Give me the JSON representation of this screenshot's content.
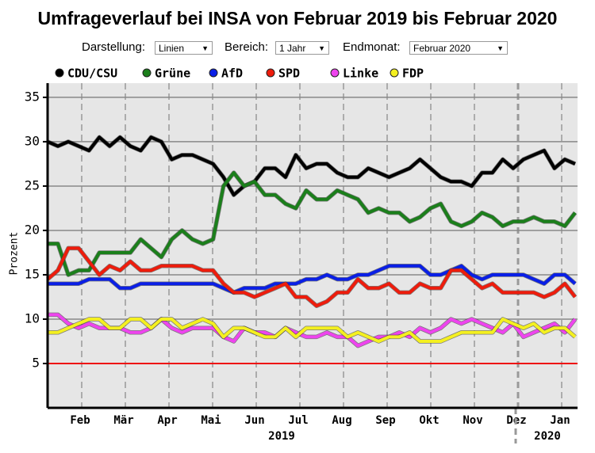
{
  "title": "Umfrageverlauf bei INSA von Februar 2019 bis Februar 2020",
  "controls": [
    {
      "label": "Darstellung:",
      "value": "Linien"
    },
    {
      "label": "Bereich:",
      "value": "1 Jahr"
    },
    {
      "label": "Endmonat:",
      "value": "Februar 2020"
    }
  ],
  "chart_data": {
    "type": "line",
    "ylabel": "Prozent",
    "ylim": [
      0,
      36.6
    ],
    "yticks": [
      5,
      10,
      15,
      20,
      25,
      30,
      35
    ],
    "grid": true,
    "threshold": 5,
    "threshold_color": "#ee1111",
    "months": [
      "Feb",
      "Mär",
      "Apr",
      "Mai",
      "Jun",
      "Jul",
      "Aug",
      "Sep",
      "Okt",
      "Nov",
      "Dez",
      "Jan"
    ],
    "years": [
      "2019",
      "2020"
    ],
    "series": [
      {
        "name": "CDU/CSU",
        "color": "#000000",
        "values": [
          30,
          29.5,
          30,
          29.5,
          29,
          30.5,
          29.5,
          30.5,
          29.5,
          29,
          30.5,
          30,
          28,
          28.5,
          28.5,
          28,
          27.5,
          26,
          24,
          25,
          25.5,
          27,
          27,
          26,
          28.5,
          27,
          27.5,
          27.5,
          26.5,
          26,
          26,
          27,
          26.5,
          26,
          26.5,
          27,
          28,
          27,
          26,
          25.5,
          25.5,
          25,
          26.5,
          26.5,
          28,
          27,
          28,
          28.5,
          29,
          27,
          28,
          27.5
        ]
      },
      {
        "name": "Grüne",
        "color": "#1b7f1b",
        "values": [
          18.5,
          18.5,
          15,
          15.5,
          15.5,
          17.5,
          17.5,
          17.5,
          17.5,
          19,
          18,
          17,
          19,
          20,
          19,
          18.5,
          19,
          25,
          26.5,
          25,
          25.5,
          24,
          24,
          23,
          22.5,
          24.5,
          23.5,
          23.5,
          24.5,
          24,
          23.5,
          22,
          22.5,
          22,
          22,
          21,
          21.5,
          22.5,
          23,
          21,
          20.5,
          21,
          22,
          21.5,
          20.5,
          21,
          21,
          21.5,
          21,
          21,
          20.5,
          22
        ]
      },
      {
        "name": "AfD",
        "color": "#0a1fe6",
        "values": [
          14,
          14,
          14,
          14,
          14.5,
          14.5,
          14.5,
          13.5,
          13.5,
          14,
          14,
          14,
          14,
          14,
          14,
          14,
          14,
          13.5,
          13,
          13.5,
          13.5,
          13.5,
          14,
          14,
          14,
          14.5,
          14.5,
          15,
          14.5,
          14.5,
          15,
          15,
          15.5,
          16,
          16,
          16,
          16,
          15,
          15,
          15.5,
          16,
          15,
          14.5,
          15,
          15,
          15,
          15,
          14.5,
          14,
          15,
          15,
          14
        ]
      },
      {
        "name": "SPD",
        "color": "#ee1c0c",
        "values": [
          14.5,
          15.5,
          18,
          18,
          16.5,
          15,
          16,
          15.5,
          16.5,
          15.5,
          15.5,
          16,
          16,
          16,
          16,
          15.5,
          15.5,
          14,
          13,
          13,
          12.5,
          13,
          13.5,
          14,
          12.5,
          12.5,
          11.5,
          12,
          13,
          13,
          14.5,
          13.5,
          13.5,
          14,
          13,
          13,
          14,
          13.5,
          13.5,
          15.5,
          15.5,
          14.5,
          13.5,
          14,
          13,
          13,
          13,
          13,
          12.5,
          13,
          14,
          12.5
        ]
      },
      {
        "name": "Linke",
        "color": "#ee44ee",
        "values": [
          10.5,
          10.5,
          9.5,
          9,
          9.5,
          9,
          9,
          9,
          8.5,
          8.5,
          9,
          10,
          9,
          8.5,
          9,
          9,
          9,
          8,
          7.5,
          9,
          8.5,
          8.5,
          8,
          9,
          8.5,
          8,
          8,
          8.5,
          8,
          8,
          7,
          7.5,
          8,
          8,
          8.5,
          8,
          9,
          8.5,
          9,
          10,
          9.5,
          10,
          9.5,
          9,
          8.5,
          9.5,
          8,
          8.5,
          9,
          9.5,
          8.5,
          10
        ]
      },
      {
        "name": "FDP",
        "color": "#f4f020",
        "values": [
          8.5,
          8.5,
          9,
          9.5,
          10,
          10,
          9,
          9,
          10,
          10,
          9,
          10,
          10,
          9,
          9.5,
          10,
          9.5,
          8,
          9,
          9,
          8.5,
          8,
          8,
          9,
          8,
          9,
          9,
          9,
          9,
          8,
          8.5,
          8,
          7.5,
          8,
          8,
          8.5,
          7.5,
          7.5,
          7.5,
          8,
          8.5,
          8.5,
          8.5,
          8.5,
          10,
          9.5,
          9,
          9.5,
          8.5,
          9,
          9,
          8
        ]
      }
    ]
  }
}
